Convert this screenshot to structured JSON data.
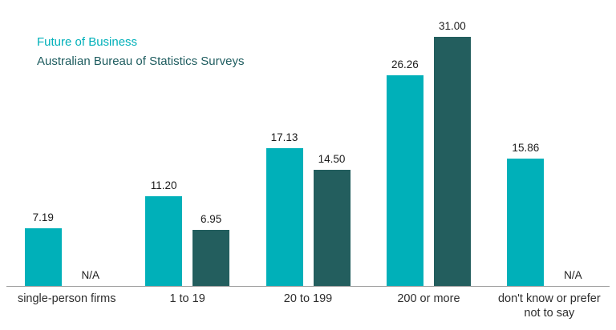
{
  "legend": {
    "items": [
      {
        "label": "Future of Business",
        "color": "#00b0b9"
      },
      {
        "label": "Australian Bureau of Statistics Surveys",
        "color": "#1e5c5f"
      }
    ]
  },
  "chart_data": {
    "type": "bar",
    "title": "",
    "xlabel": "",
    "ylabel": "",
    "categories": [
      "single-person firms",
      "1 to 19",
      "20 to 199",
      "200 or more",
      "don't know or prefer not to say"
    ],
    "series": [
      {
        "name": "Future of Business",
        "color": "#00b0b9",
        "values": [
          7.19,
          11.2,
          17.13,
          26.26,
          15.86
        ],
        "labels": [
          "7.19",
          "11.20",
          "17.13",
          "26.26",
          "15.86"
        ]
      },
      {
        "name": "Australian Bureau of Statistics Surveys",
        "color": "#235e5e",
        "values": [
          null,
          6.95,
          14.5,
          31.0,
          null
        ],
        "labels": [
          "N/A",
          "6.95",
          "14.50",
          "31.00",
          "N/A"
        ]
      }
    ],
    "ylim": [
      0,
      31
    ],
    "grid": false,
    "legend_position": "top-left",
    "axis_line_color": "#9d9d9d"
  }
}
